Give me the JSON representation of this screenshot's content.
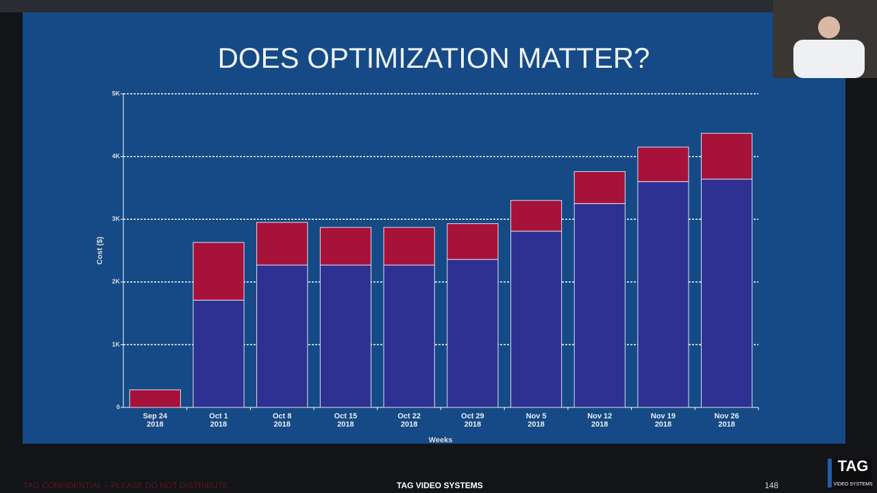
{
  "chart_data": {
    "type": "stacked-bar",
    "title": "DOES OPTIMIZATION MATTER?",
    "y_label": "Cost ($)",
    "x_label": "Weeks",
    "categories": [
      "Sep 24 2018",
      "Oct 1 2018",
      "Oct 8 2018",
      "Oct 15 2018",
      "Oct 22 2018",
      "Oct 29 2018",
      "Nov 5 2018",
      "Nov 12 2018",
      "Nov 19 2018",
      "Nov 26 2018"
    ],
    "series": [
      {
        "color": "#2e3192",
        "values": [
          0,
          1710,
          2270,
          2270,
          2270,
          2360,
          2810,
          3250,
          3600,
          3640
        ]
      },
      {
        "color": "#a6123a",
        "values": [
          280,
          920,
          680,
          600,
          600,
          570,
          490,
          510,
          550,
          730
        ]
      }
    ],
    "ylim": [
      0,
      5000
    ],
    "yticks": [
      0,
      {
        "value": 1000,
        "label": "1K"
      },
      {
        "value": 2000,
        "label": "2K"
      },
      {
        "value": 3000,
        "label": "3K"
      },
      {
        "value": 4000,
        "label": "4K"
      },
      {
        "value": 5000,
        "label": "5K"
      }
    ],
    "grid": true
  },
  "footer": {
    "confidential": "TAG CONFIDENTIAL – PLEASE DO NOT DISTRIBUTE",
    "company": "TAG VIDEO SYSTEMS",
    "page": "148"
  },
  "logo": {
    "name": "TAG",
    "tagline": "VIDEO SYSTEMS"
  }
}
